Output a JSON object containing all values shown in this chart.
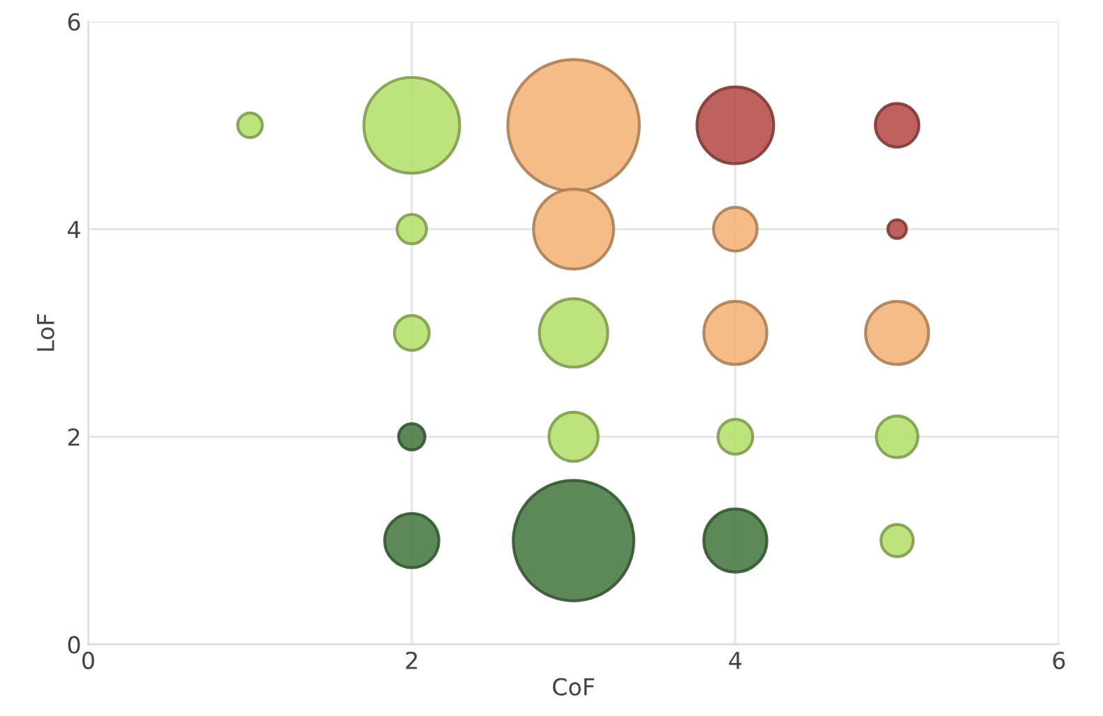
{
  "chart_data": {
    "type": "bubble",
    "xlabel": "CoF",
    "ylabel": "LoF",
    "x": [
      1,
      2,
      3,
      4,
      5,
      2,
      3,
      4,
      5,
      2,
      3,
      4,
      5,
      2,
      3,
      4,
      5,
      2,
      3,
      4,
      5
    ],
    "values": [
      5,
      5,
      5,
      5,
      5,
      4,
      4,
      4,
      4,
      3,
      3,
      3,
      3,
      2,
      2,
      2,
      2,
      1,
      1,
      1,
      1
    ],
    "sizes": [
      0.035,
      0.53,
      1,
      0.34,
      0.11,
      0.05,
      0.37,
      0.11,
      0.02,
      0.07,
      0.27,
      0.23,
      0.23,
      0.04,
      0.14,
      0.07,
      0.1,
      0.17,
      0.84,
      0.23,
      0.06
    ],
    "colors": [
      "#b5e06e",
      "#b5e06e",
      "#f5b57a",
      "#b8504c",
      "#b8504c",
      "#b5e06e",
      "#f5b57a",
      "#f5b57a",
      "#b8504c",
      "#b5e06e",
      "#b5e06e",
      "#f5b57a",
      "#f5b57a",
      "#4a7c45",
      "#b5e06e",
      "#b5e06e",
      "#b5e06e",
      "#4a7c45",
      "#4a7c45",
      "#4a7c45",
      "#b5e06e"
    ],
    "xlim": [
      0,
      6
    ],
    "xticks": [
      0,
      2,
      4,
      6
    ],
    "ylim": [
      0,
      6
    ],
    "yticks": [
      0,
      2,
      4,
      6
    ],
    "grid": true
  }
}
